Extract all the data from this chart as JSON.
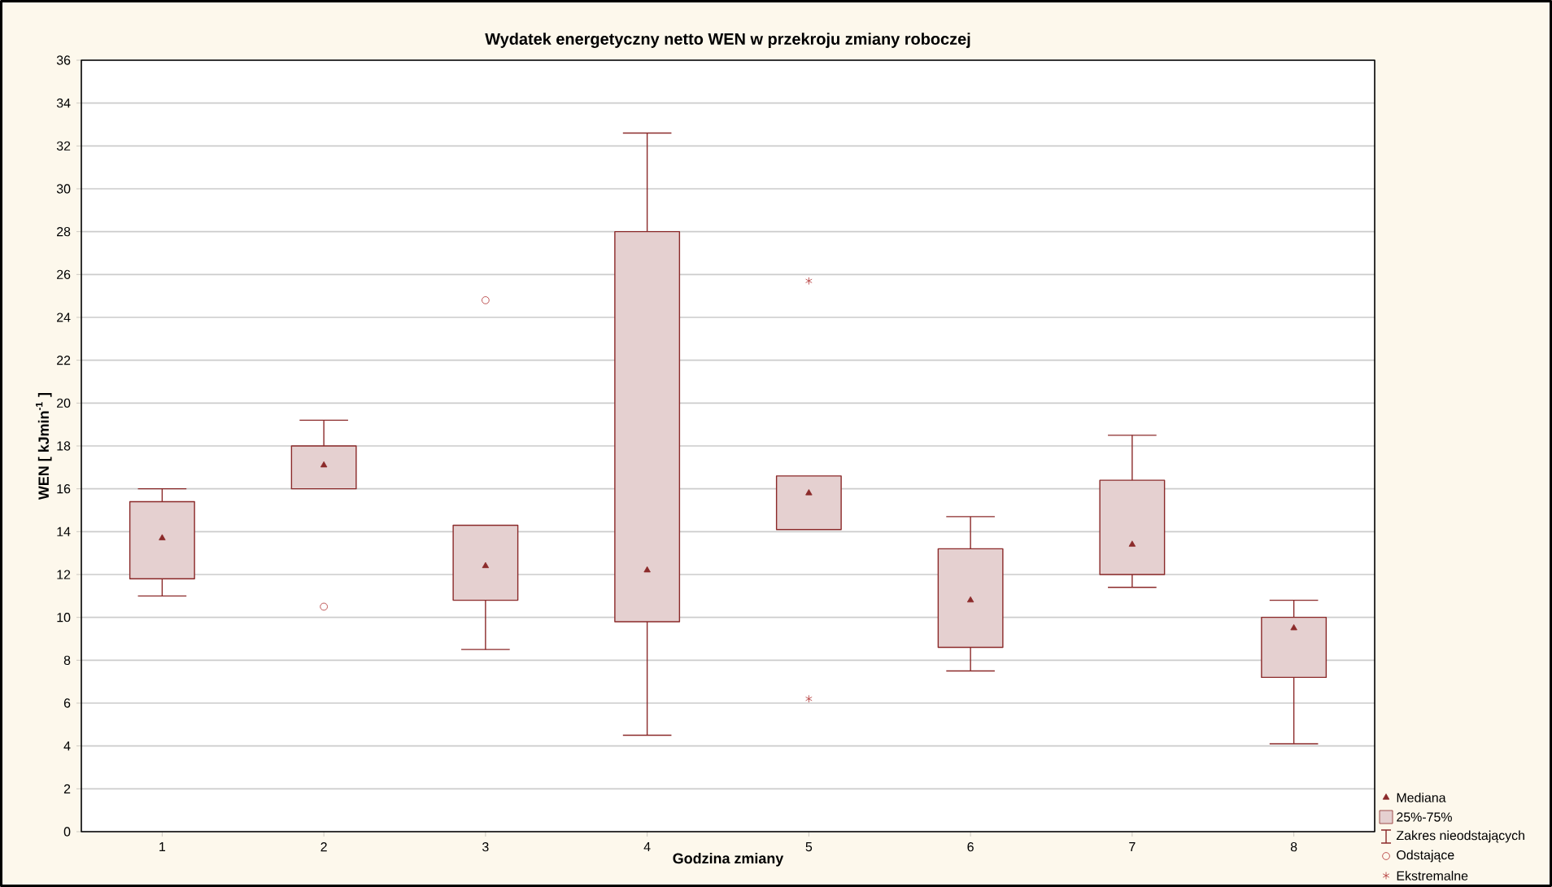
{
  "chart_data": {
    "type": "box",
    "title": "Wydatek energetyczny netto WEN w przekroju zmiany roboczej",
    "xlabel": "Godzina zmiany",
    "ylabel": "WEN    [ kJmin$^{-1}$ ]",
    "categories": [
      "1",
      "2",
      "3",
      "4",
      "5",
      "6",
      "7",
      "8"
    ],
    "ylim": [
      0,
      36
    ],
    "yticks": [
      0,
      2,
      4,
      6,
      8,
      10,
      12,
      14,
      16,
      18,
      20,
      22,
      24,
      26,
      28,
      30,
      32,
      34,
      36
    ],
    "grid": "y",
    "legend": "bottom right",
    "annotations": [
      "Mediana",
      "Zakres nieodstających"
    ],
    "series": [
      {
        "name": "25%-75%",
        "color": "#8b2a2a",
        "boxes": [
          {
            "low": 11.0,
            "q1": 11.8,
            "median": 13.7,
            "q3": 15.4,
            "high": 16.0
          },
          {
            "low": 16.0,
            "q1": 16.0,
            "median": 17.1,
            "q3": 18.0,
            "high": 19.2
          },
          {
            "low": 8.5,
            "q1": 10.8,
            "median": 12.4,
            "q3": 14.3,
            "high": 14.3
          },
          {
            "low": 4.5,
            "q1": 9.8,
            "median": 12.2,
            "q3": 28.0,
            "high": 32.6
          },
          {
            "low": 14.1,
            "q1": 14.1,
            "median": 15.8,
            "q3": 16.6,
            "high": 16.6
          },
          {
            "low": 7.5,
            "q1": 8.6,
            "median": 10.8,
            "q3": 13.2,
            "high": 14.7
          },
          {
            "low": 11.4,
            "q1": 12.0,
            "median": 13.4,
            "q3": 16.4,
            "high": 18.5
          },
          {
            "low": 4.1,
            "q1": 7.2,
            "median": 9.5,
            "q3": 10.0,
            "high": 10.8
          }
        ]
      },
      {
        "name": "Odstające",
        "type": "scatter",
        "marker": "circle",
        "color": "#b03030",
        "x": [
          "2",
          "3"
        ],
        "values": [
          10.5,
          24.8
        ]
      },
      {
        "name": "Ekstremalne",
        "type": "scatter",
        "marker": "cross",
        "color": "#b03030",
        "x": [
          "5",
          "5"
        ],
        "values": [
          25.7,
          6.2
        ]
      }
    ]
  }
}
